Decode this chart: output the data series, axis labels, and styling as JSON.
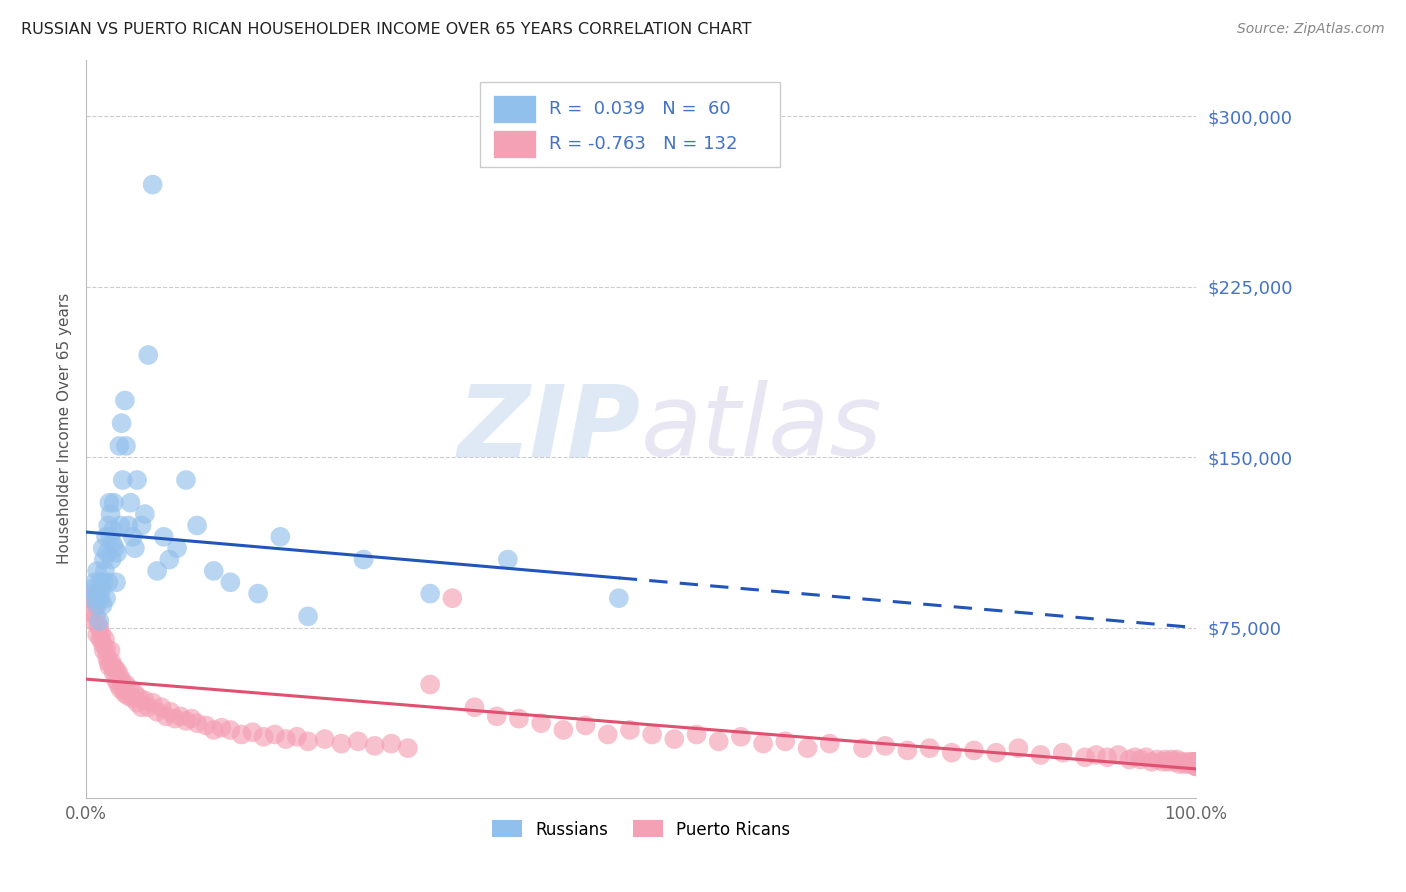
{
  "title": "RUSSIAN VS PUERTO RICAN HOUSEHOLDER INCOME OVER 65 YEARS CORRELATION CHART",
  "source": "Source: ZipAtlas.com",
  "ylabel": "Householder Income Over 65 years",
  "legend_russian": "Russians",
  "legend_pr": "Puerto Ricans",
  "r_russian": 0.039,
  "n_russian": 60,
  "r_pr": -0.763,
  "n_pr": 132,
  "russian_color": "#92c0ec",
  "pr_color": "#f4a0b5",
  "russian_line_color": "#2255bb",
  "pr_line_color": "#e05070",
  "background_color": "#ffffff",
  "grid_color": "#cccccc",
  "right_axis_color": "#4472c4",
  "title_color": "#222222",
  "watermark_zip": "ZIP",
  "watermark_atlas": "atlas",
  "ylim": [
    0,
    325000
  ],
  "xlim": [
    0.0,
    1.0
  ],
  "yticks": [
    0,
    75000,
    150000,
    225000,
    300000
  ],
  "ytick_labels": [
    "",
    "$75,000",
    "$150,000",
    "$225,000",
    "$300,000"
  ],
  "xtick_labels": [
    "0.0%",
    "",
    "",
    "",
    "",
    "100.0%"
  ],
  "russian_x": [
    0.005,
    0.007,
    0.008,
    0.01,
    0.01,
    0.011,
    0.012,
    0.013,
    0.013,
    0.014,
    0.015,
    0.015,
    0.016,
    0.016,
    0.017,
    0.018,
    0.018,
    0.019,
    0.02,
    0.02,
    0.021,
    0.022,
    0.022,
    0.023,
    0.024,
    0.024,
    0.025,
    0.026,
    0.027,
    0.028,
    0.03,
    0.031,
    0.032,
    0.033,
    0.035,
    0.036,
    0.038,
    0.04,
    0.042,
    0.044,
    0.046,
    0.05,
    0.053,
    0.056,
    0.06,
    0.064,
    0.07,
    0.075,
    0.082,
    0.09,
    0.1,
    0.115,
    0.13,
    0.155,
    0.175,
    0.2,
    0.25,
    0.31,
    0.38,
    0.48
  ],
  "russian_y": [
    92000,
    88000,
    95000,
    100000,
    85000,
    90000,
    78000,
    95000,
    88000,
    92000,
    110000,
    85000,
    105000,
    95000,
    100000,
    115000,
    88000,
    108000,
    120000,
    95000,
    130000,
    115000,
    125000,
    105000,
    118000,
    112000,
    130000,
    110000,
    95000,
    108000,
    155000,
    120000,
    165000,
    140000,
    175000,
    155000,
    120000,
    130000,
    115000,
    110000,
    140000,
    120000,
    125000,
    195000,
    270000,
    100000,
    115000,
    105000,
    110000,
    140000,
    120000,
    100000,
    95000,
    90000,
    115000,
    80000,
    105000,
    90000,
    105000,
    88000
  ],
  "pr_x": [
    0.004,
    0.005,
    0.006,
    0.007,
    0.008,
    0.009,
    0.01,
    0.011,
    0.012,
    0.013,
    0.014,
    0.015,
    0.016,
    0.017,
    0.018,
    0.019,
    0.02,
    0.021,
    0.022,
    0.023,
    0.024,
    0.025,
    0.026,
    0.027,
    0.028,
    0.029,
    0.03,
    0.031,
    0.032,
    0.033,
    0.034,
    0.035,
    0.036,
    0.038,
    0.04,
    0.042,
    0.044,
    0.046,
    0.048,
    0.05,
    0.053,
    0.056,
    0.06,
    0.064,
    0.068,
    0.072,
    0.076,
    0.08,
    0.085,
    0.09,
    0.095,
    0.1,
    0.108,
    0.115,
    0.122,
    0.13,
    0.14,
    0.15,
    0.16,
    0.17,
    0.18,
    0.19,
    0.2,
    0.215,
    0.23,
    0.245,
    0.26,
    0.275,
    0.29,
    0.31,
    0.33,
    0.35,
    0.37,
    0.39,
    0.41,
    0.43,
    0.45,
    0.47,
    0.49,
    0.51,
    0.53,
    0.55,
    0.57,
    0.59,
    0.61,
    0.63,
    0.65,
    0.67,
    0.7,
    0.72,
    0.74,
    0.76,
    0.78,
    0.8,
    0.82,
    0.84,
    0.86,
    0.88,
    0.9,
    0.91,
    0.92,
    0.93,
    0.94,
    0.945,
    0.95,
    0.955,
    0.96,
    0.965,
    0.97,
    0.972,
    0.975,
    0.978,
    0.98,
    0.983,
    0.985,
    0.987,
    0.99,
    0.992,
    0.994,
    0.996,
    0.997,
    0.998,
    0.999,
    1.0,
    1.0,
    1.0,
    1.0,
    1.0,
    1.0,
    1.0,
    1.0,
    1.0
  ],
  "pr_y": [
    88000,
    82000,
    90000,
    78000,
    85000,
    80000,
    72000,
    76000,
    75000,
    70000,
    72000,
    68000,
    65000,
    70000,
    66000,
    62000,
    60000,
    58000,
    65000,
    60000,
    58000,
    55000,
    57000,
    52000,
    56000,
    50000,
    54000,
    48000,
    52000,
    50000,
    48000,
    46000,
    50000,
    45000,
    48000,
    44000,
    46000,
    42000,
    44000,
    40000,
    43000,
    40000,
    42000,
    38000,
    40000,
    36000,
    38000,
    35000,
    36000,
    34000,
    35000,
    33000,
    32000,
    30000,
    31000,
    30000,
    28000,
    29000,
    27000,
    28000,
    26000,
    27000,
    25000,
    26000,
    24000,
    25000,
    23000,
    24000,
    22000,
    50000,
    88000,
    40000,
    36000,
    35000,
    33000,
    30000,
    32000,
    28000,
    30000,
    28000,
    26000,
    28000,
    25000,
    27000,
    24000,
    25000,
    22000,
    24000,
    22000,
    23000,
    21000,
    22000,
    20000,
    21000,
    20000,
    22000,
    19000,
    20000,
    18000,
    19000,
    18000,
    19000,
    17000,
    18000,
    17000,
    18000,
    16000,
    17000,
    16000,
    17000,
    16000,
    17000,
    16000,
    17000,
    15000,
    16000,
    15000,
    16000,
    15000,
    16000,
    15000,
    16000,
    15000,
    16000,
    15000,
    16000,
    15000,
    14000,
    15000,
    14000,
    15000,
    14000
  ]
}
